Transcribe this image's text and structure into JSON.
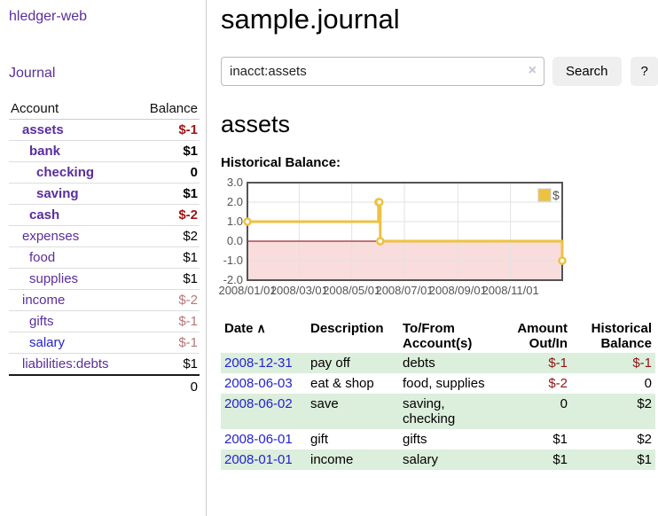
{
  "app": {
    "title": "hledger-web"
  },
  "sidebar": {
    "journal_link": "Journal",
    "table": {
      "headers": {
        "account": "Account",
        "balance": "Balance"
      },
      "rows": [
        {
          "account": "assets",
          "balance": "$-1",
          "depth": 0,
          "bold": true,
          "negative": "strong"
        },
        {
          "account": "bank",
          "balance": "$1",
          "depth": 1,
          "bold": true,
          "negative": "none"
        },
        {
          "account": "checking",
          "balance": "0",
          "depth": 2,
          "bold": true,
          "negative": "none"
        },
        {
          "account": "saving",
          "balance": "$1",
          "depth": 2,
          "bold": true,
          "negative": "none"
        },
        {
          "account": "cash",
          "balance": "$-2",
          "depth": 1,
          "bold": true,
          "negative": "strong"
        },
        {
          "account": "expenses",
          "balance": "$2",
          "depth": 0,
          "bold": false,
          "negative": "none"
        },
        {
          "account": "food",
          "balance": "$1",
          "depth": 1,
          "bold": false,
          "negative": "none"
        },
        {
          "account": "supplies",
          "balance": "$1",
          "depth": 1,
          "bold": false,
          "negative": "none"
        },
        {
          "account": "income",
          "balance": "$-2",
          "depth": 0,
          "bold": false,
          "negative": "muted"
        },
        {
          "account": "gifts",
          "balance": "$-1",
          "depth": 1,
          "bold": false,
          "negative": "muted"
        },
        {
          "account": "salary",
          "balance": "$-1",
          "depth": 1,
          "bold": false,
          "negative": "muted",
          "link_color": "blue"
        },
        {
          "account": "liabilities:debts",
          "balance": "$1",
          "depth": 0,
          "bold": false,
          "negative": "none"
        }
      ],
      "total": "0"
    }
  },
  "header": {
    "title": "sample.journal"
  },
  "search": {
    "value": "inacct:assets",
    "clear_icon": "×",
    "search_button": "Search",
    "help_button": "?"
  },
  "account_page": {
    "title": "assets",
    "chart_label": "Historical Balance:"
  },
  "chart_data": {
    "type": "line",
    "step": true,
    "title": "Historical Balance:",
    "series": [
      {
        "name": "$",
        "color": "#edc240",
        "points": [
          [
            "2008-01-01",
            1.0
          ],
          [
            "2008-06-01",
            2.0
          ],
          [
            "2008-06-02",
            2.0
          ],
          [
            "2008-06-03",
            0.0
          ],
          [
            "2008-12-31",
            -1.0
          ]
        ]
      }
    ],
    "ylim": [
      -2.0,
      3.0
    ],
    "yticks": [
      3.0,
      2.0,
      1.0,
      0.0,
      -1.0,
      -2.0
    ],
    "xrange": [
      "2008-01-01",
      "2008-12-31"
    ],
    "xticks": [
      "2008/01/01",
      "2008/03/01",
      "2008/05/01",
      "2008/07/01",
      "2008/09/01",
      "2008/11/01"
    ],
    "legend": "$",
    "legend_position": "top-right",
    "grid": true,
    "colors": {
      "line": "#edc240",
      "marker_fill": "#ffffff",
      "negative_region_fill": "#f9dcdc",
      "zero_line": "#800000",
      "border": "#545454",
      "gridline": "#e2e2e2",
      "tick_text": "#545454"
    }
  },
  "register": {
    "headers": {
      "date": "Date",
      "description": "Description",
      "account": "To/From Account(s)",
      "amount": "Amount Out/In",
      "balance": "Historical Balance"
    },
    "sort_icon": "∧",
    "rows": [
      {
        "date": "2008-12-31",
        "description": "pay off",
        "accounts": "debts",
        "amount": "$-1",
        "balance": "$-1",
        "amount_negative": true,
        "balance_negative": true
      },
      {
        "date": "2008-06-03",
        "description": "eat & shop",
        "accounts": "food, supplies",
        "amount": "$-2",
        "balance": "0",
        "amount_negative": true,
        "balance_negative": false
      },
      {
        "date": "2008-06-02",
        "description": "save",
        "accounts": "saving, checking",
        "amount": "0",
        "balance": "$2",
        "amount_negative": false,
        "balance_negative": false
      },
      {
        "date": "2008-06-01",
        "description": "gift",
        "accounts": "gifts",
        "amount": "$1",
        "balance": "$2",
        "amount_negative": false,
        "balance_negative": false
      },
      {
        "date": "2008-01-01",
        "description": "income",
        "accounts": "salary",
        "amount": "$1",
        "balance": "$1",
        "amount_negative": false,
        "balance_negative": false
      }
    ]
  }
}
